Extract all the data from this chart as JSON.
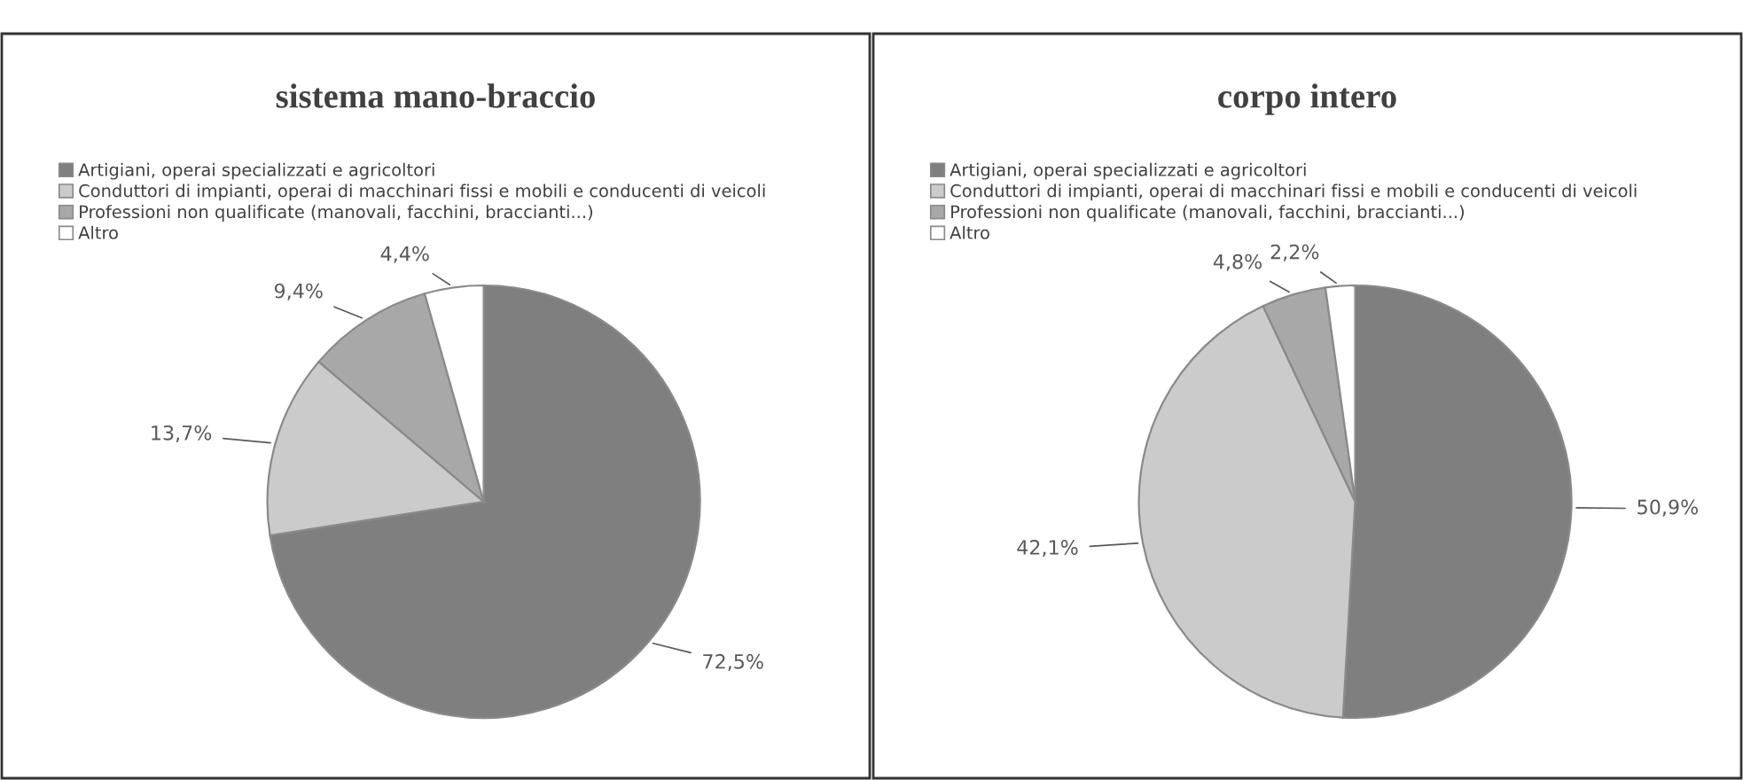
{
  "chart_data": [
    {
      "type": "pie",
      "title": "sistema mano-braccio",
      "legend": "top left",
      "categories": [
        "Artigiani, operai specializzati e agricoltori",
        "Conduttori di impianti, operai di macchinari fissi e mobili e conducenti di veicoli",
        "Professioni non qualificate (manovali, facchini, braccianti...)",
        "Altro"
      ],
      "values": [
        72.5,
        13.7,
        9.4,
        4.4
      ],
      "value_labels": [
        "72,5%",
        "13,7%",
        "9,4%",
        "4,4%"
      ],
      "colors": [
        "#7f7f7f",
        "#cbcbcb",
        "#a8a8a8",
        "#ffffff"
      ]
    },
    {
      "type": "pie",
      "title": "corpo intero",
      "legend": "top left",
      "categories": [
        "Artigiani, operai specializzati e agricoltori",
        "Conduttori di impianti, operai di macchinari fissi e mobili e conducenti di veicoli",
        "Professioni non qualificate (manovali, facchini, braccianti...)",
        "Altro"
      ],
      "values": [
        50.9,
        42.1,
        4.8,
        2.2
      ],
      "value_labels": [
        "50,9%",
        "42,1%",
        "4,8%",
        "2,2%"
      ],
      "colors": [
        "#7f7f7f",
        "#cbcbcb",
        "#a8a8a8",
        "#ffffff"
      ]
    }
  ]
}
